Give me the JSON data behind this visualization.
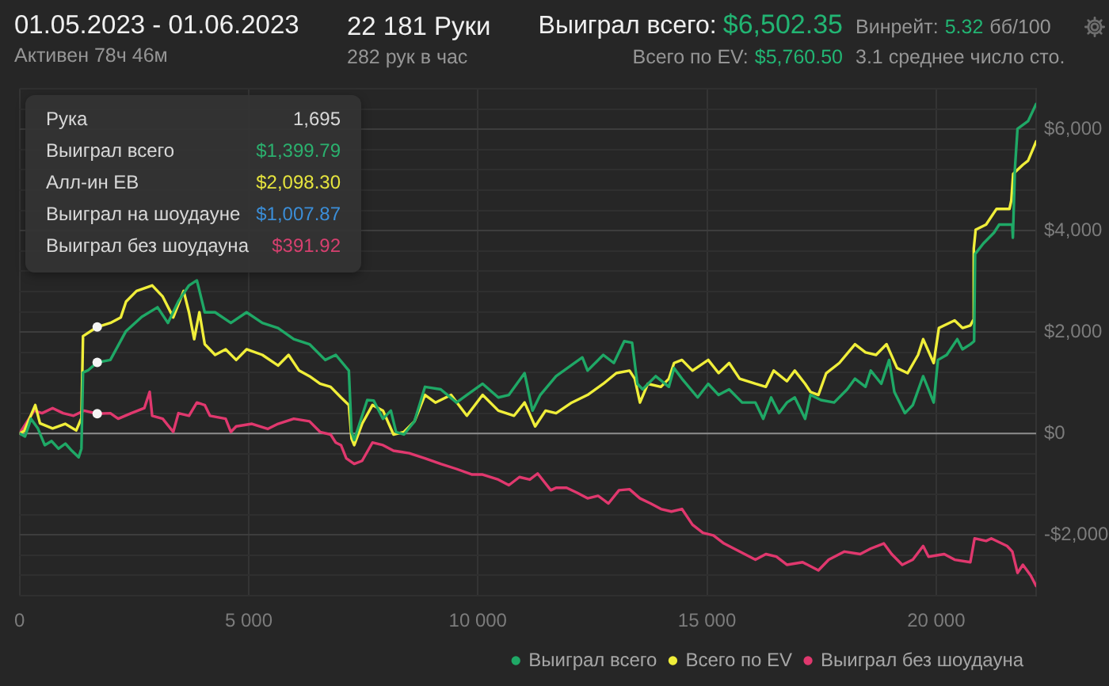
{
  "chart_data": {
    "type": "line",
    "title": "01.05.2023 - 01.06.2023",
    "subtitle": "Активен 78ч 46м",
    "annotations": [
      "22 181 Руки",
      "282 рук в час",
      "Выиграл всего:",
      "$6,502.35",
      "Всего по EV:",
      "$5,760.50",
      "Винрейт:",
      "5.32",
      "бб/100",
      "3.1 среднее число сто.",
      "Рука",
      "1,695",
      "Выиграл всего",
      "$1,399.79",
      "Алл-ин ЕВ",
      "$2,098.30",
      "Выиграл на шоудауне",
      "$1,007.87",
      "Выиграл без шоудауна",
      "$391.92"
    ],
    "xlim": [
      0,
      22181
    ],
    "xticks": [
      0,
      {
        "value": 5000,
        "label": "5 000"
      },
      {
        "value": 10000,
        "label": "10 000"
      },
      {
        "value": 15000,
        "label": "15 000"
      },
      {
        "value": 20000,
        "label": "20 000"
      }
    ],
    "ylim": [
      -3200,
      6800
    ],
    "yticks": [
      {
        "value": -3200,
        "label": null
      },
      {
        "value": -2800,
        "label": null
      },
      {
        "value": -2400,
        "label": null
      },
      {
        "value": -2000,
        "label": "-$2,000"
      },
      {
        "value": -1600,
        "label": null
      },
      {
        "value": -1200,
        "label": null
      },
      {
        "value": -800,
        "label": null
      },
      {
        "value": -400,
        "label": null
      },
      {
        "value": 0,
        "label": "$0"
      },
      {
        "value": 400,
        "label": null
      },
      {
        "value": 800,
        "label": null
      },
      {
        "value": 1200,
        "label": null
      },
      {
        "value": 1600,
        "label": null
      },
      {
        "value": 2000,
        "label": "$2,000"
      },
      {
        "value": 2400,
        "label": null
      },
      {
        "value": 2800,
        "label": null
      },
      {
        "value": 3200,
        "label": null
      },
      {
        "value": 3600,
        "label": null
      },
      {
        "value": 4000,
        "label": "$4,000"
      },
      {
        "value": 4400,
        "label": null
      },
      {
        "value": 4800,
        "label": null
      },
      {
        "value": 5200,
        "label": null
      },
      {
        "value": 5600,
        "label": null
      },
      {
        "value": 6000,
        "label": "$6,000"
      },
      {
        "value": 6400,
        "label": null
      },
      {
        "value": 6800,
        "label": null
      }
    ],
    "grid": true,
    "legend": "bottom right",
    "ref_lines": [
      {
        "axis": "y",
        "value": 0,
        "color": "#8c8c8c"
      }
    ],
    "series": [
      {
        "name": "Выиграл всего",
        "color": "#1fa866",
        "x": [
          0,
          120,
          250,
          400,
          550,
          700,
          850,
          1000,
          1150,
          1290,
          1350,
          1385,
          1500,
          1693,
          1981,
          2324,
          2667,
          3011,
          3237,
          3467,
          3697,
          3869,
          4041,
          4267,
          4611,
          4954,
          5297,
          5640,
          5984,
          6327,
          6670,
          6900,
          7185,
          7244,
          7302,
          7587,
          7726,
          7930,
          8102,
          8215,
          8387,
          8617,
          8847,
          9190,
          9534,
          9760,
          10104,
          10447,
          10677,
          11020,
          11192,
          11363,
          11706,
          12280,
          12394,
          12737,
          12967,
          13194,
          13365,
          13481,
          13595,
          13880,
          14168,
          14281,
          14453,
          14796,
          15026,
          15253,
          15483,
          15767,
          16056,
          16227,
          16399,
          16571,
          16743,
          16915,
          17141,
          17258,
          17485,
          17773,
          18058,
          18229,
          18459,
          18573,
          18803,
          18974,
          19088,
          19318,
          19490,
          19716,
          19833,
          19946,
          20039,
          20231,
          20461,
          20574,
          20746,
          20828,
          20850,
          21031,
          21261,
          21375,
          21660,
          21674,
          21718,
          21775,
          22005,
          22181
        ],
        "values": [
          0,
          -60,
          290,
          100,
          -230,
          -150,
          -300,
          -200,
          -350,
          -470,
          -300,
          1200,
          1250,
          1400,
          1450,
          2020,
          2300,
          2490,
          2180,
          2610,
          2920,
          3020,
          2390,
          2390,
          2180,
          2390,
          2180,
          2080,
          1860,
          1760,
          1450,
          1550,
          1240,
          30,
          -130,
          660,
          650,
          290,
          450,
          30,
          -20,
          240,
          920,
          870,
          610,
          760,
          980,
          710,
          760,
          1190,
          450,
          760,
          1130,
          1500,
          1240,
          1550,
          1390,
          1820,
          1790,
          980,
          870,
          1130,
          920,
          1290,
          1080,
          710,
          980,
          760,
          870,
          610,
          610,
          290,
          710,
          400,
          610,
          710,
          290,
          760,
          660,
          610,
          870,
          1080,
          920,
          1240,
          980,
          1450,
          820,
          400,
          560,
          1130,
          870,
          610,
          1450,
          1550,
          1860,
          1660,
          1760,
          1820,
          3540,
          3750,
          3960,
          4120,
          4120,
          3860,
          5220,
          6010,
          6160,
          6500
        ]
      },
      {
        "name": "Всего по EV",
        "color": "#f0ee3a",
        "x": [
          0,
          103,
          343,
          446,
          721,
          996,
          1236,
          1350,
          1385,
          1693,
          1981,
          2209,
          2324,
          2552,
          2895,
          3124,
          3354,
          3581,
          3697,
          3811,
          3924,
          4041,
          4267,
          4497,
          4727,
          4954,
          5297,
          5640,
          5870,
          6100,
          6327,
          6557,
          6787,
          7014,
          7185,
          7244,
          7302,
          7474,
          7700,
          7930,
          8160,
          8387,
          8617,
          8847,
          9074,
          9417,
          9760,
          10104,
          10447,
          10790,
          11020,
          11250,
          11477,
          11706,
          12050,
          12394,
          12737,
          13021,
          13309,
          13424,
          13537,
          13709,
          13994,
          14168,
          14281,
          14453,
          14683,
          15026,
          15253,
          15483,
          15713,
          16056,
          16284,
          16455,
          16743,
          16915,
          17141,
          17258,
          17430,
          17602,
          17887,
          18229,
          18459,
          18688,
          18917,
          19147,
          19376,
          19605,
          19716,
          19946,
          20060,
          20403,
          20574,
          20746,
          20804,
          20821,
          20862,
          21089,
          21318,
          21600,
          21640,
          21680,
          21892,
          22005,
          22181
        ],
        "values": [
          0,
          50,
          560,
          200,
          100,
          190,
          60,
          300,
          1920,
          2100,
          2180,
          2290,
          2600,
          2810,
          2920,
          2700,
          2290,
          2810,
          2390,
          1860,
          2390,
          1760,
          1550,
          1660,
          1450,
          1660,
          1550,
          1340,
          1550,
          1240,
          1130,
          980,
          920,
          710,
          560,
          -100,
          -230,
          190,
          560,
          450,
          -20,
          30,
          240,
          760,
          610,
          760,
          350,
          760,
          450,
          350,
          610,
          140,
          450,
          400,
          610,
          760,
          980,
          1190,
          1240,
          1080,
          610,
          980,
          920,
          1080,
          1390,
          1450,
          1240,
          1450,
          1190,
          1390,
          1080,
          980,
          920,
          1240,
          1030,
          1240,
          980,
          820,
          760,
          1190,
          1390,
          1760,
          1600,
          1550,
          1760,
          1290,
          1190,
          1550,
          1860,
          1390,
          2080,
          2230,
          2080,
          2130,
          2230,
          3650,
          4020,
          4120,
          4430,
          4430,
          4600,
          5120,
          5300,
          5380,
          5760
        ]
      },
      {
        "name": "Выиграл без шоудауна",
        "color": "#e0386e",
        "x": [
          0,
          320,
          491,
          721,
          951,
          1178,
          1408,
          1693,
          1981,
          2152,
          2437,
          2722,
          2839,
          2894,
          3124,
          3354,
          3467,
          3697,
          3869,
          4041,
          4154,
          4497,
          4611,
          4727,
          5071,
          5414,
          5640,
          5984,
          6327,
          6557,
          6787,
          6900,
          7014,
          7130,
          7302,
          7474,
          7700,
          7930,
          8160,
          8503,
          8847,
          9190,
          9534,
          9877,
          10104,
          10447,
          10677,
          10907,
          11133,
          11305,
          11593,
          11706,
          11935,
          12164,
          12394,
          12623,
          12850,
          13080,
          13309,
          13537,
          13767,
          13994,
          14223,
          14453,
          14683,
          14910,
          15140,
          15370,
          15713,
          16056,
          16284,
          16513,
          16743,
          17086,
          17430,
          17656,
          17999,
          18342,
          18573,
          18857,
          19029,
          19260,
          19490,
          19716,
          19833,
          20176,
          20403,
          20746,
          20838,
          21089,
          21204,
          21547,
          21662,
          21775,
          21892,
          22063,
          22181
        ],
        "values": [
          0,
          450,
          400,
          500,
          400,
          350,
          450,
          390,
          400,
          290,
          400,
          500,
          820,
          350,
          290,
          30,
          400,
          350,
          610,
          560,
          350,
          290,
          30,
          140,
          190,
          90,
          190,
          290,
          240,
          30,
          -20,
          -180,
          -230,
          -490,
          -600,
          -540,
          -180,
          -230,
          -340,
          -390,
          -490,
          -600,
          -700,
          -810,
          -810,
          -910,
          -1020,
          -860,
          -910,
          -790,
          -1120,
          -1070,
          -1070,
          -1170,
          -1280,
          -1230,
          -1380,
          -1120,
          -1100,
          -1280,
          -1380,
          -1490,
          -1540,
          -1490,
          -1800,
          -1960,
          -2010,
          -2170,
          -2330,
          -2490,
          -2380,
          -2430,
          -2590,
          -2540,
          -2700,
          -2490,
          -2330,
          -2380,
          -2270,
          -2170,
          -2380,
          -2590,
          -2490,
          -2220,
          -2430,
          -2380,
          -2490,
          -2540,
          -2070,
          -2120,
          -2070,
          -2220,
          -2330,
          -2750,
          -2590,
          -2800,
          -3010
        ]
      },
      {
        "type": "scatter",
        "marker": "circle",
        "color": "#f4f4f4",
        "x": [
          1695,
          1695,
          1695
        ],
        "values": [
          2100,
          1400,
          390
        ]
      }
    ]
  }
}
